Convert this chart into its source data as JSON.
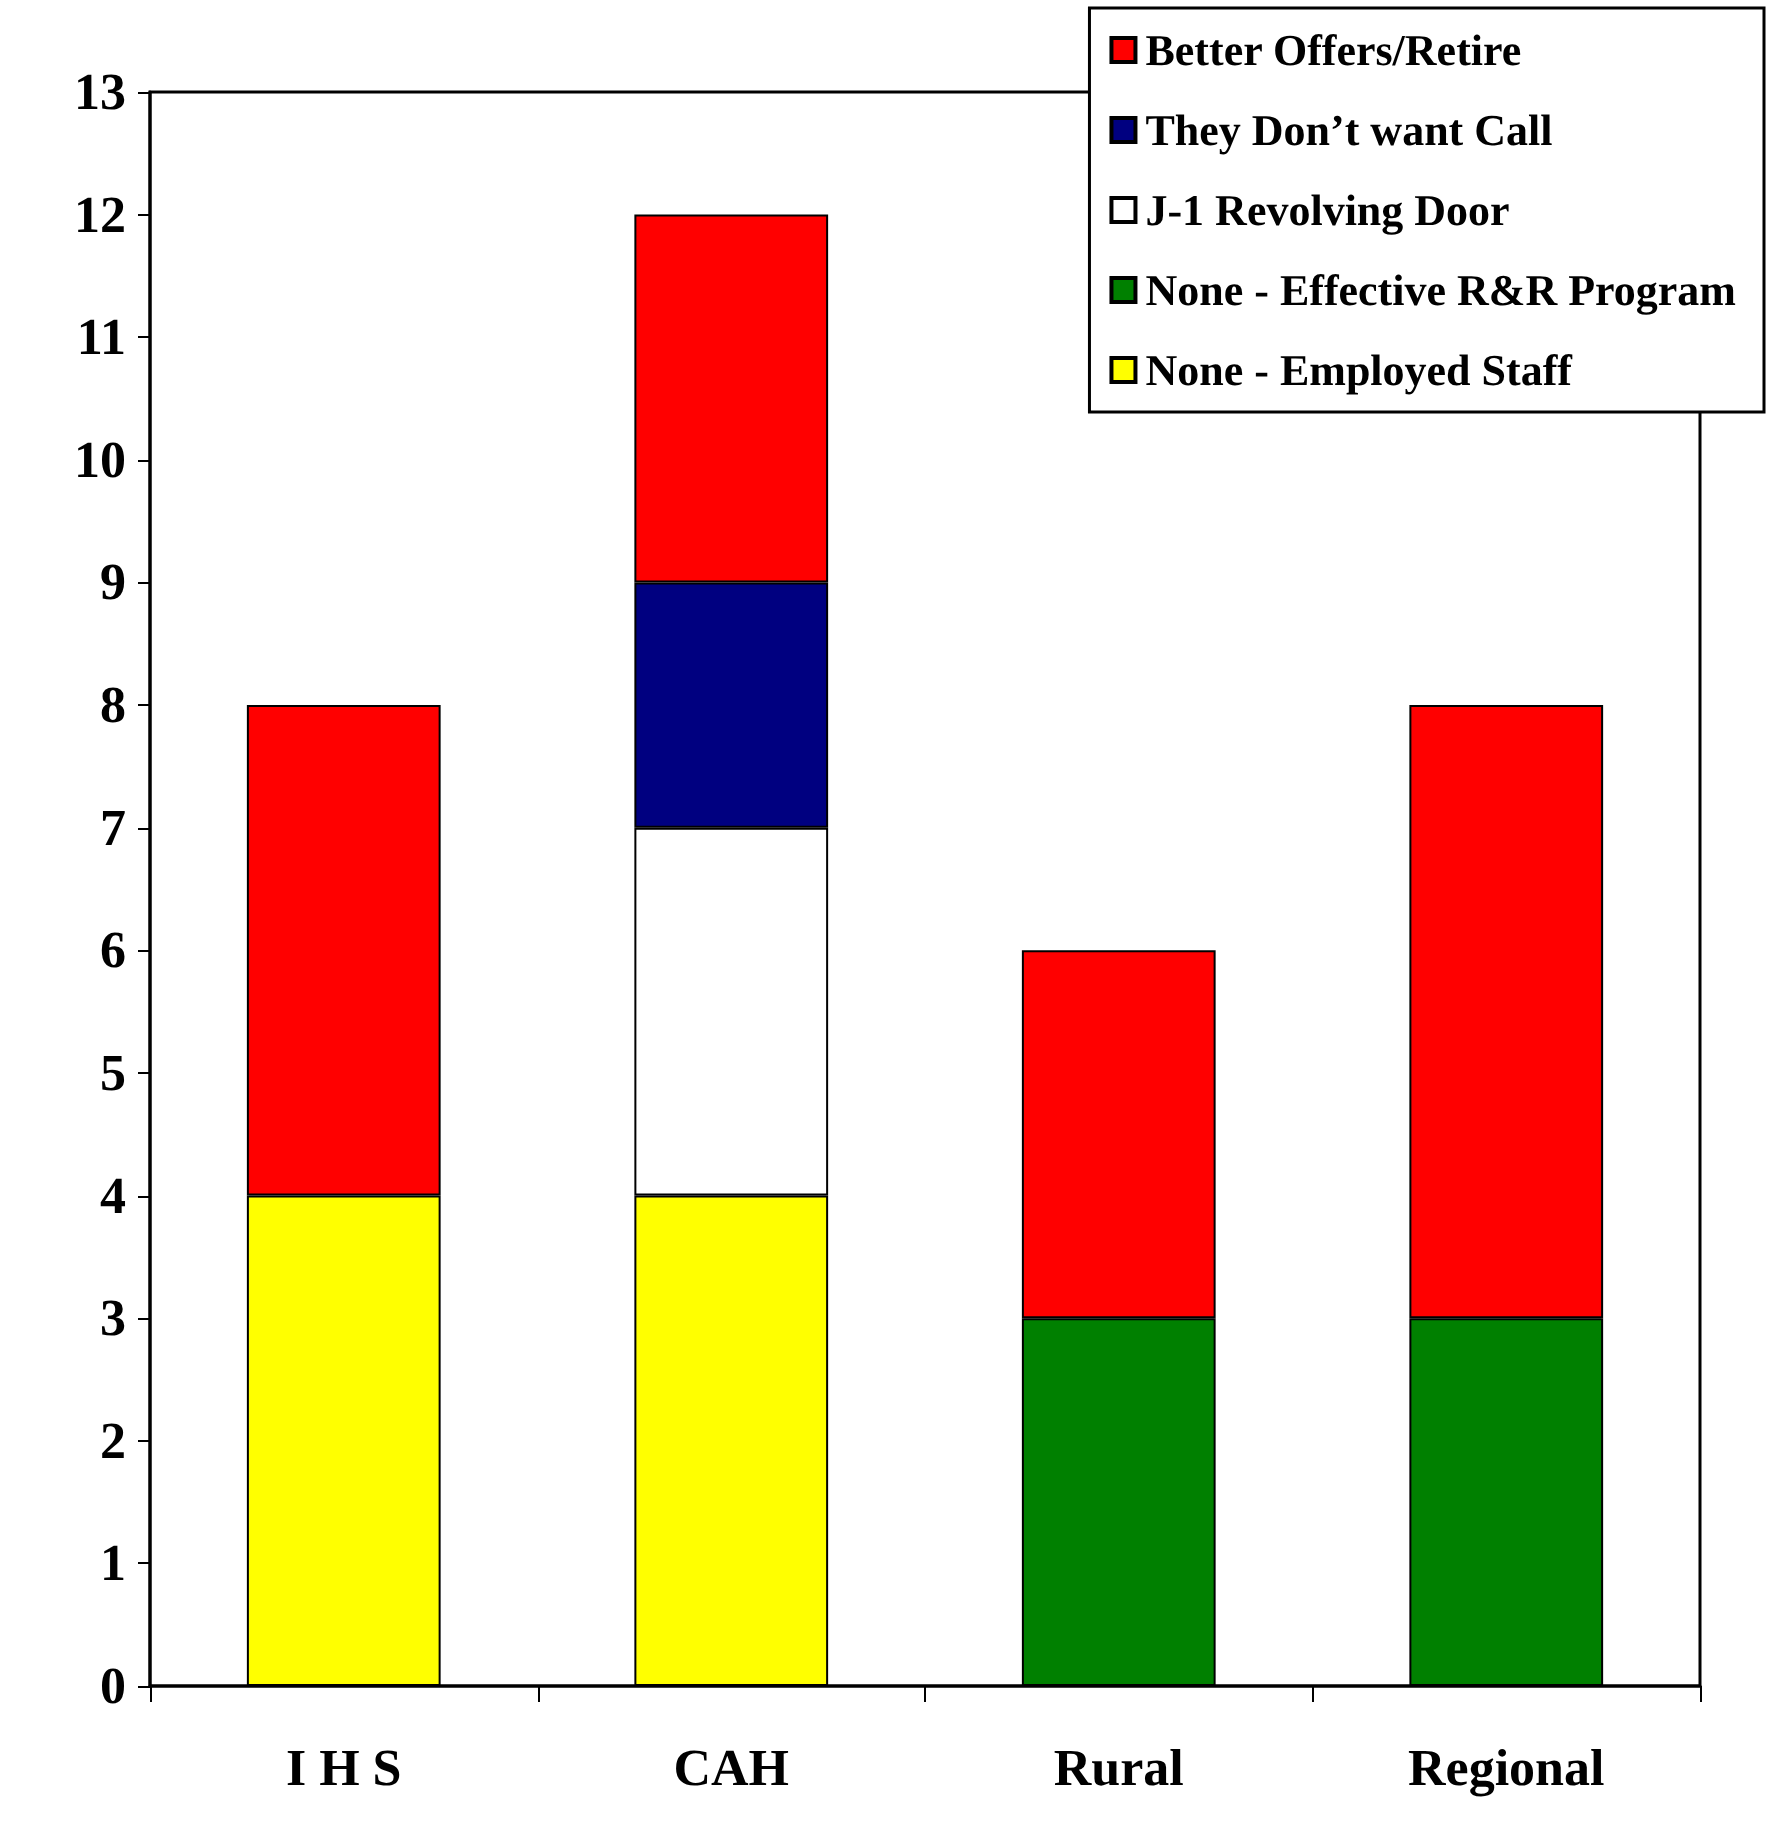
{
  "chart_data": {
    "type": "bar",
    "stacked": true,
    "categories": [
      "I H S",
      "CAH",
      "Rural",
      "Regional"
    ],
    "series": [
      {
        "name": "None - Employed Staff",
        "color": "#ffff00",
        "values": [
          4,
          4,
          null,
          null
        ]
      },
      {
        "name": "None - Effective R&R Program",
        "color": "#008000",
        "values": [
          null,
          null,
          3,
          3
        ]
      },
      {
        "name": "J-1 Revolving Door",
        "color": "#ffffff",
        "values": [
          null,
          3,
          null,
          null
        ]
      },
      {
        "name": "They Don’t want Call",
        "color": "#000080",
        "values": [
          null,
          2,
          null,
          null
        ]
      },
      {
        "name": "Better Offers/Retire",
        "color": "#ff0000",
        "values": [
          4,
          3,
          3,
          5
        ]
      }
    ],
    "ylim": [
      0,
      13
    ],
    "yticks": [
      0,
      1,
      2,
      3,
      4,
      5,
      6,
      7,
      8,
      9,
      10,
      11,
      12,
      13
    ],
    "grid": false,
    "legend": "top right"
  }
}
